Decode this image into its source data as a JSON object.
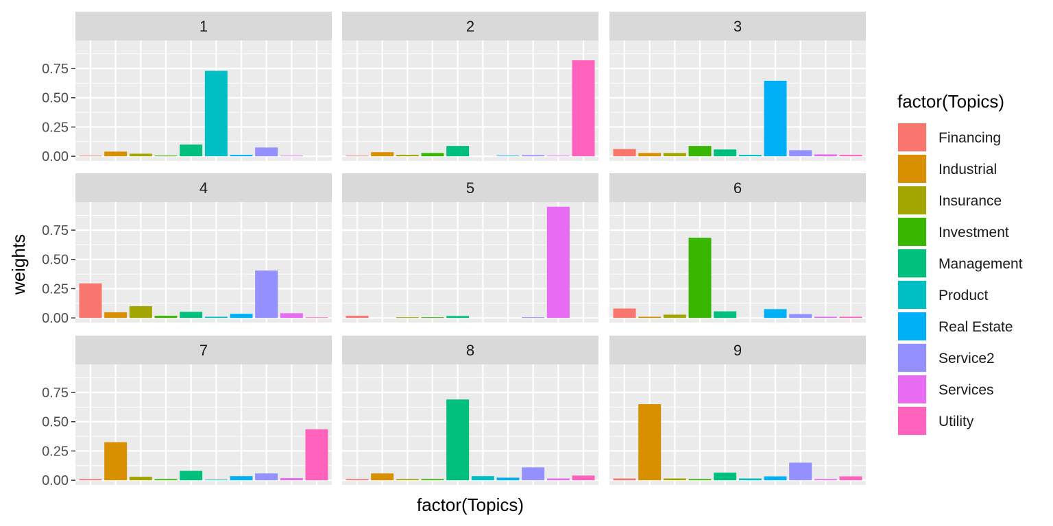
{
  "chart_data": {
    "type": "bar",
    "facet_labels": [
      "1",
      "2",
      "3",
      "4",
      "5",
      "6",
      "7",
      "8",
      "9"
    ],
    "xlabel": "factor(Topics)",
    "ylabel": "weights",
    "y_ticks": [
      0,
      0.25,
      0.5,
      0.75
    ],
    "y_tick_labels": [
      "0.00",
      "0.25",
      "0.50",
      "0.75"
    ],
    "ylim": [
      -0.04,
      0.99
    ],
    "grid": true,
    "legend": {
      "title": "factor(Topics)",
      "position": "right"
    },
    "categories": [
      "Financing",
      "Industrial",
      "Insurance",
      "Investment",
      "Management",
      "Product",
      "Real Estate",
      "Service2",
      "Services",
      "Utility"
    ],
    "colors": [
      "#F8766D",
      "#D89000",
      "#A3A500",
      "#39B600",
      "#00BF7D",
      "#00BFC4",
      "#00B0F6",
      "#9590FF",
      "#E76BF3",
      "#FF62BC"
    ],
    "panels": [
      {
        "facet": "1",
        "values": [
          0.005,
          0.04,
          0.022,
          0.006,
          0.1,
          0.73,
          0.012,
          0.075,
          0.005,
          0.0
        ]
      },
      {
        "facet": "2",
        "values": [
          0.005,
          0.035,
          0.012,
          0.028,
          0.088,
          0.0,
          0.005,
          0.01,
          0.005,
          0.82
        ]
      },
      {
        "facet": "3",
        "values": [
          0.062,
          0.028,
          0.028,
          0.088,
          0.058,
          0.012,
          0.645,
          0.052,
          0.016,
          0.012
        ]
      },
      {
        "facet": "4",
        "values": [
          0.295,
          0.048,
          0.1,
          0.018,
          0.052,
          0.01,
          0.035,
          0.405,
          0.04,
          0.005
        ]
      },
      {
        "facet": "5",
        "values": [
          0.018,
          0.0,
          0.006,
          0.006,
          0.016,
          0.0,
          0.0,
          0.006,
          0.95,
          0.0
        ]
      },
      {
        "facet": "6",
        "values": [
          0.08,
          0.01,
          0.028,
          0.685,
          0.056,
          0.0,
          0.075,
          0.033,
          0.01,
          0.01
        ]
      },
      {
        "facet": "7",
        "values": [
          0.01,
          0.325,
          0.03,
          0.01,
          0.08,
          0.005,
          0.035,
          0.058,
          0.018,
          0.435
        ]
      },
      {
        "facet": "8",
        "values": [
          0.01,
          0.058,
          0.01,
          0.01,
          0.69,
          0.035,
          0.022,
          0.11,
          0.015,
          0.04
        ]
      },
      {
        "facet": "9",
        "values": [
          0.015,
          0.65,
          0.015,
          0.01,
          0.065,
          0.015,
          0.033,
          0.15,
          0.01,
          0.033
        ]
      }
    ]
  }
}
